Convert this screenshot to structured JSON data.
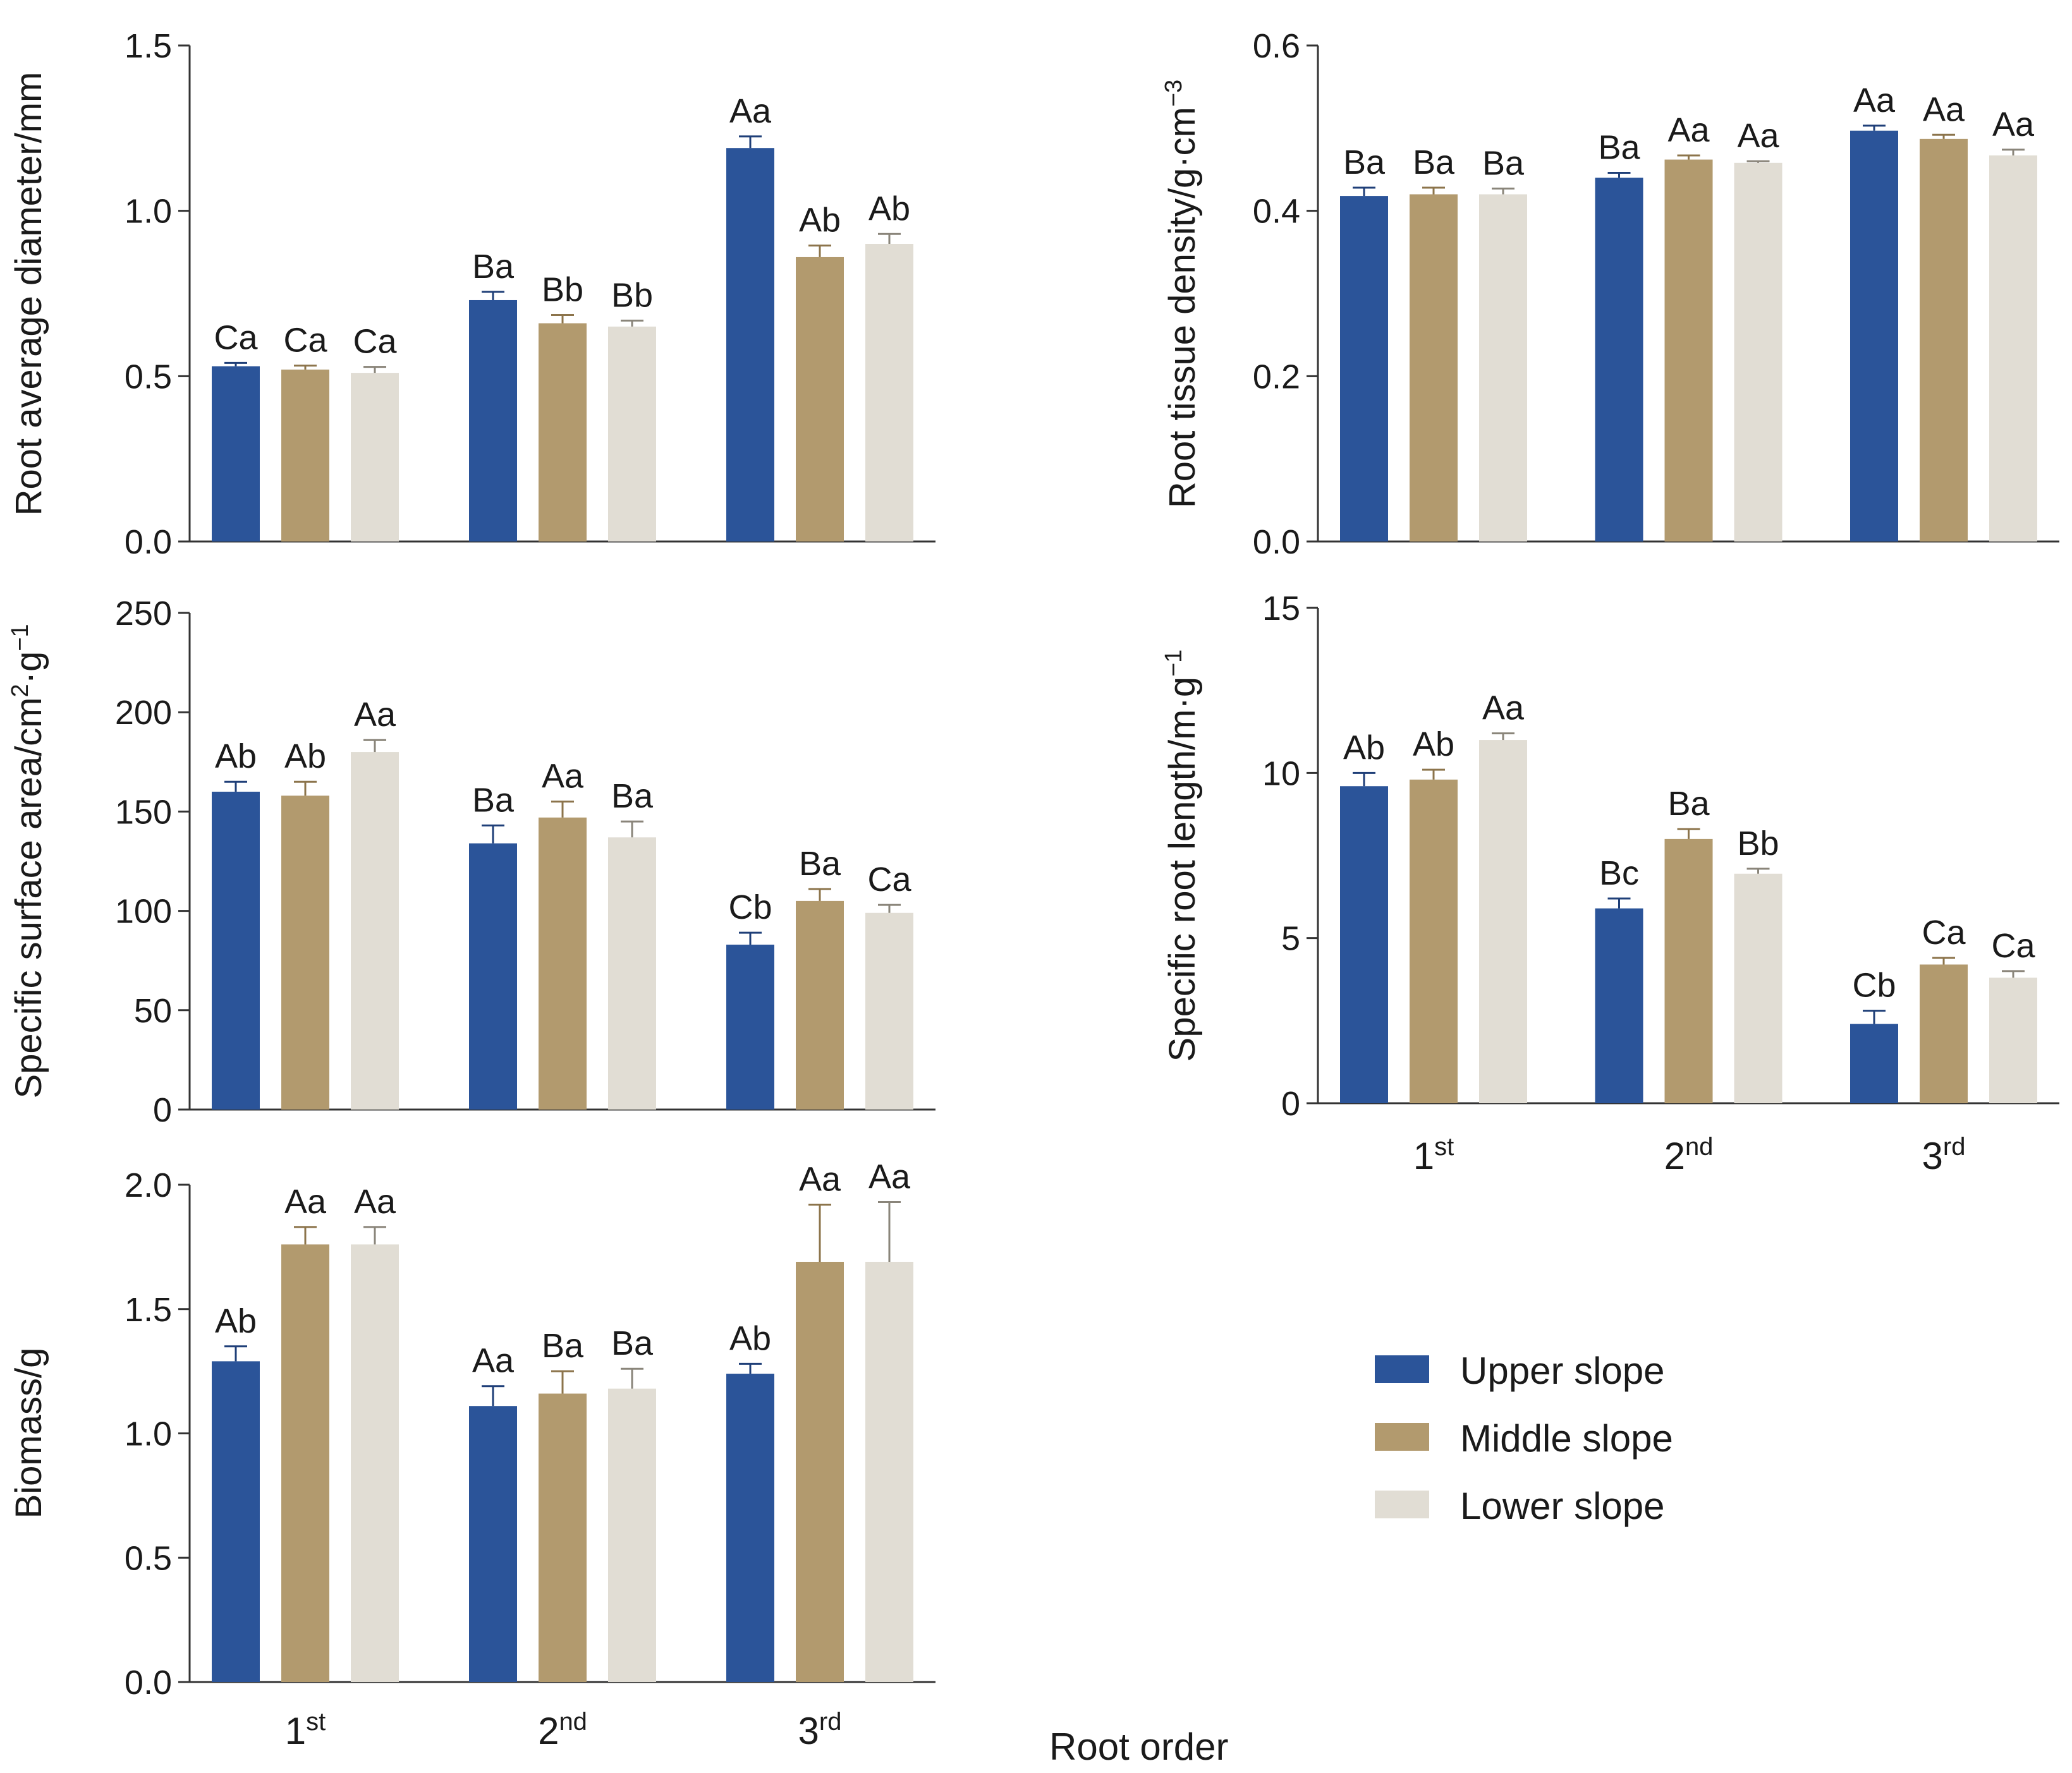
{
  "colors": {
    "upper": "#2b5499",
    "middle": "#b29a6e",
    "lower": "#e1ddd4",
    "axis": "#333333"
  },
  "legend": [
    {
      "label": "Upper slope",
      "key": "upper"
    },
    {
      "label": "Middle slope",
      "key": "middle"
    },
    {
      "label": "Lower slope",
      "key": "lower"
    }
  ],
  "x_axis_title": "Root order",
  "chart_data": [
    {
      "type": "bar",
      "ylabel": "Root average diameter/mm",
      "ylim": [
        0,
        1.5
      ],
      "yticks": [
        "0.0",
        "0.5",
        "1.0",
        "1.5"
      ],
      "categories": [
        "1st",
        "2nd",
        "3rd"
      ],
      "series": [
        {
          "name": "Upper slope",
          "values": [
            0.53,
            0.73,
            1.19
          ],
          "errors": [
            0.01,
            0.025,
            0.035
          ],
          "labels": [
            "Ca",
            "Ba",
            "Aa"
          ]
        },
        {
          "name": "Middle slope",
          "values": [
            0.52,
            0.66,
            0.86
          ],
          "errors": [
            0.012,
            0.025,
            0.035
          ],
          "labels": [
            "Ca",
            "Bb",
            "Ab"
          ]
        },
        {
          "name": "Lower slope",
          "values": [
            0.51,
            0.65,
            0.9
          ],
          "errors": [
            0.018,
            0.018,
            0.03
          ],
          "labels": [
            "Ca",
            "Bb",
            "Ab"
          ]
        }
      ]
    },
    {
      "type": "bar",
      "ylabel": "Root tissue density/g·cm",
      "ylabel_sup": "−3",
      "ylim": [
        0,
        0.6
      ],
      "yticks": [
        "0.0",
        "0.2",
        "0.4",
        "0.6"
      ],
      "categories": [
        "1st",
        "2nd",
        "3rd"
      ],
      "series": [
        {
          "name": "Upper slope",
          "values": [
            0.418,
            0.44,
            0.497
          ],
          "errors": [
            0.01,
            0.006,
            0.006
          ],
          "labels": [
            "Ba",
            "Ba",
            "Aa"
          ]
        },
        {
          "name": "Middle slope",
          "values": [
            0.42,
            0.462,
            0.487
          ],
          "errors": [
            0.008,
            0.005,
            0.005
          ],
          "labels": [
            "Ba",
            "Aa",
            "Aa"
          ]
        },
        {
          "name": "Lower slope",
          "values": [
            0.42,
            0.458,
            0.467
          ],
          "errors": [
            0.007,
            0.002,
            0.007
          ],
          "labels": [
            "Ba",
            "Aa",
            "Aa"
          ]
        }
      ]
    },
    {
      "type": "bar",
      "ylabel": "Specific surface area/cm",
      "ylabel_parts": [
        "2",
        "·g",
        "−1"
      ],
      "ylim": [
        0,
        250
      ],
      "yticks": [
        "0",
        "50",
        "100",
        "150",
        "200",
        "250"
      ],
      "categories": [
        "1st",
        "2nd",
        "3rd"
      ],
      "series": [
        {
          "name": "Upper slope",
          "values": [
            160,
            134,
            83
          ],
          "errors": [
            5,
            9,
            6
          ],
          "labels": [
            "Ab",
            "Ba",
            "Cb"
          ]
        },
        {
          "name": "Middle slope",
          "values": [
            158,
            147,
            105
          ],
          "errors": [
            7,
            8,
            6
          ],
          "labels": [
            "Ab",
            "Aa",
            "Ba"
          ]
        },
        {
          "name": "Lower slope",
          "values": [
            180,
            137,
            99
          ],
          "errors": [
            6,
            8,
            4
          ],
          "labels": [
            "Aa",
            "Ba",
            "Ca"
          ]
        }
      ]
    },
    {
      "type": "bar",
      "ylabel": "Specific root length/m·g",
      "ylabel_sup": "−1",
      "ylim": [
        0,
        15
      ],
      "yticks": [
        "0",
        "5",
        "10",
        "15"
      ],
      "categories": [
        "1st",
        "2nd",
        "3rd"
      ],
      "series": [
        {
          "name": "Upper slope",
          "values": [
            9.6,
            5.9,
            2.4
          ],
          "errors": [
            0.4,
            0.3,
            0.4
          ],
          "labels": [
            "Ab",
            "Bc",
            "Cb"
          ]
        },
        {
          "name": "Middle slope",
          "values": [
            9.8,
            8.0,
            4.2
          ],
          "errors": [
            0.3,
            0.3,
            0.2
          ],
          "labels": [
            "Ab",
            "Ba",
            "Ca"
          ]
        },
        {
          "name": "Lower slope",
          "values": [
            11.0,
            6.95,
            3.8
          ],
          "errors": [
            0.2,
            0.15,
            0.2
          ],
          "labels": [
            "Aa",
            "Bb",
            "Ca"
          ]
        }
      ]
    },
    {
      "type": "bar",
      "ylabel": "Biomass/g",
      "ylim": [
        0,
        2.0
      ],
      "yticks": [
        "0.0",
        "0.5",
        "1.0",
        "1.5",
        "2.0"
      ],
      "categories": [
        "1st",
        "2nd",
        "3rd"
      ],
      "series": [
        {
          "name": "Upper slope",
          "values": [
            1.29,
            1.11,
            1.24
          ],
          "errors": [
            0.06,
            0.08,
            0.04
          ],
          "labels": [
            "Ab",
            "Aa",
            "Ab"
          ]
        },
        {
          "name": "Middle slope",
          "values": [
            1.76,
            1.16,
            1.69
          ],
          "errors": [
            0.07,
            0.09,
            0.23
          ],
          "labels": [
            "Aa",
            "Ba",
            "Aa"
          ]
        },
        {
          "name": "Lower slope",
          "values": [
            1.76,
            1.18,
            1.69
          ],
          "errors": [
            0.07,
            0.08,
            0.24
          ],
          "labels": [
            "Aa",
            "Ba",
            "Aa"
          ]
        }
      ]
    }
  ],
  "x_tick_labels": [
    {
      "base": "1",
      "sup": "st"
    },
    {
      "base": "2",
      "sup": "nd"
    },
    {
      "base": "3",
      "sup": "rd"
    }
  ]
}
